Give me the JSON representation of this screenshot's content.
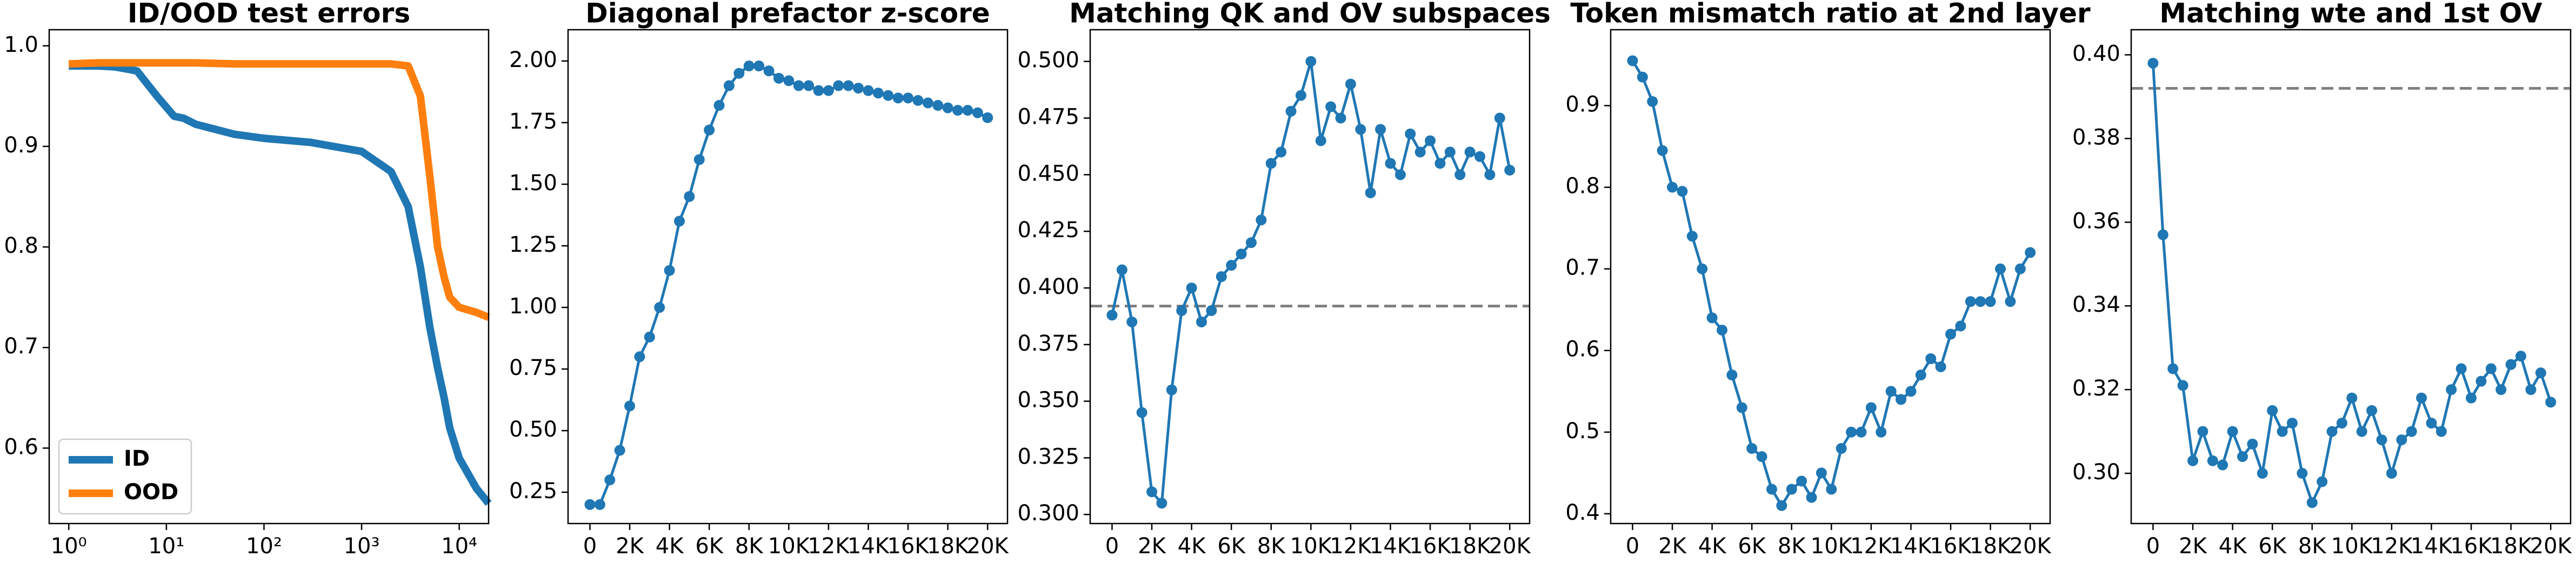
{
  "chart_data": [
    {
      "type": "line",
      "title": "ID/OOD test errors",
      "xscale": "log",
      "legend": "lower left",
      "x": [
        1,
        2,
        3,
        5,
        8,
        12,
        15,
        20,
        50,
        100,
        300,
        1000,
        2000,
        3000,
        4000,
        5000,
        6000,
        7000,
        8000,
        10000,
        15000,
        20000
      ],
      "series": [
        {
          "name": "ID",
          "color": "#1f77b4",
          "values": [
            0.98,
            0.98,
            0.979,
            0.975,
            0.95,
            0.93,
            0.928,
            0.922,
            0.912,
            0.908,
            0.904,
            0.895,
            0.875,
            0.84,
            0.78,
            0.72,
            0.68,
            0.65,
            0.62,
            0.59,
            0.56,
            0.545
          ]
        },
        {
          "name": "OOD",
          "color": "#ff7f0e",
          "values": [
            0.982,
            0.983,
            0.983,
            0.983,
            0.983,
            0.983,
            0.983,
            0.983,
            0.982,
            0.982,
            0.982,
            0.982,
            0.982,
            0.98,
            0.95,
            0.87,
            0.8,
            0.77,
            0.75,
            0.74,
            0.735,
            0.73
          ]
        }
      ],
      "xlim": [
        0.63,
        20000
      ],
      "ylim": [
        0.525,
        1.016
      ],
      "xticks": [
        {
          "value": 1,
          "label": "10⁰"
        },
        {
          "value": 10,
          "label": "10¹"
        },
        {
          "value": 100,
          "label": "10²"
        },
        {
          "value": 1000,
          "label": "10³"
        },
        {
          "value": 10000,
          "label": "10⁴"
        }
      ],
      "yticks": [
        0.6,
        0.7,
        0.8,
        0.9,
        {
          "value": 1,
          "label": "1.0"
        }
      ]
    },
    {
      "type": "line",
      "title": "Diagonal prefactor z-score",
      "markers": true,
      "x": [
        0,
        500,
        1000,
        1500,
        2000,
        2500,
        3000,
        3500,
        4000,
        4500,
        5000,
        5500,
        6000,
        6500,
        7000,
        7500,
        8000,
        8500,
        9000,
        9500,
        10000,
        10500,
        11000,
        11500,
        12000,
        12500,
        13000,
        13500,
        14000,
        14500,
        15000,
        15500,
        16000,
        16500,
        17000,
        17500,
        18000,
        18500,
        19000,
        19500,
        20000
      ],
      "series": [
        {
          "color": "#1f77b4",
          "values": [
            0.2,
            0.2,
            0.3,
            0.42,
            0.6,
            0.8,
            0.88,
            1.0,
            1.15,
            1.35,
            1.45,
            1.6,
            1.72,
            1.82,
            1.9,
            1.95,
            1.98,
            1.98,
            1.96,
            1.93,
            1.92,
            1.9,
            1.9,
            1.88,
            1.88,
            1.9,
            1.9,
            1.89,
            1.88,
            1.87,
            1.86,
            1.85,
            1.85,
            1.84,
            1.83,
            1.82,
            1.81,
            1.8,
            1.8,
            1.79,
            1.77
          ]
        }
      ],
      "xlim": [
        -1100,
        21000
      ],
      "ylim": [
        0.123,
        2.127
      ],
      "xticks": [
        0,
        {
          "value": 2000,
          "label": "2K"
        },
        {
          "value": 4000,
          "label": "4K"
        },
        {
          "value": 6000,
          "label": "6K"
        },
        {
          "value": 8000,
          "label": "8K"
        },
        {
          "value": 10000,
          "label": "10K"
        },
        {
          "value": 12000,
          "label": "12K"
        },
        {
          "value": 14000,
          "label": "14K"
        },
        {
          "value": 16000,
          "label": "16K"
        },
        {
          "value": 18000,
          "label": "18K"
        },
        {
          "value": 20000,
          "label": "20K"
        }
      ],
      "yticks": [
        0.25,
        {
          "value": 0.5,
          "label": "0.50"
        },
        0.75,
        {
          "value": 1,
          "label": "1.00"
        },
        1.25,
        {
          "value": 1.5,
          "label": "1.50"
        },
        1.75,
        {
          "value": 2,
          "label": "2.00"
        }
      ]
    },
    {
      "type": "line",
      "title": "Matching QK and OV subspaces",
      "markers": true,
      "hline": 0.392,
      "hline_color": "#808080",
      "x": [
        0,
        500,
        1000,
        1500,
        2000,
        2500,
        3000,
        3500,
        4000,
        4500,
        5000,
        5500,
        6000,
        6500,
        7000,
        7500,
        8000,
        8500,
        9000,
        9500,
        10000,
        10500,
        11000,
        11500,
        12000,
        12500,
        13000,
        13500,
        14000,
        14500,
        15000,
        15500,
        16000,
        16500,
        17000,
        17500,
        18000,
        18500,
        19000,
        19500,
        20000
      ],
      "series": [
        {
          "color": "#1f77b4",
          "values": [
            0.388,
            0.408,
            0.385,
            0.345,
            0.31,
            0.305,
            0.355,
            0.39,
            0.4,
            0.385,
            0.39,
            0.405,
            0.41,
            0.415,
            0.42,
            0.43,
            0.455,
            0.46,
            0.478,
            0.485,
            0.5,
            0.465,
            0.48,
            0.475,
            0.49,
            0.47,
            0.442,
            0.47,
            0.455,
            0.45,
            0.468,
            0.46,
            0.465,
            0.455,
            0.46,
            0.45,
            0.46,
            0.458,
            0.45,
            0.475,
            0.452
          ]
        }
      ],
      "xlim": [
        -1100,
        21000
      ],
      "ylim": [
        0.296,
        0.514
      ],
      "xticks": [
        0,
        {
          "value": 2000,
          "label": "2K"
        },
        {
          "value": 4000,
          "label": "4K"
        },
        {
          "value": 6000,
          "label": "6K"
        },
        {
          "value": 8000,
          "label": "8K"
        },
        {
          "value": 10000,
          "label": "10K"
        },
        {
          "value": 12000,
          "label": "12K"
        },
        {
          "value": 14000,
          "label": "14K"
        },
        {
          "value": 16000,
          "label": "16K"
        },
        {
          "value": 18000,
          "label": "18K"
        },
        {
          "value": 20000,
          "label": "20K"
        }
      ],
      "yticks": [
        {
          "value": 0.3,
          "label": "0.300"
        },
        0.325,
        {
          "value": 0.35,
          "label": "0.350"
        },
        0.375,
        {
          "value": 0.4,
          "label": "0.400"
        },
        0.425,
        {
          "value": 0.45,
          "label": "0.450"
        },
        0.475,
        {
          "value": 0.5,
          "label": "0.500"
        }
      ]
    },
    {
      "type": "line",
      "title": "Token mismatch ratio at 2nd layer",
      "markers": true,
      "x": [
        0,
        500,
        1000,
        1500,
        2000,
        2500,
        3000,
        3500,
        4000,
        4500,
        5000,
        5500,
        6000,
        6500,
        7000,
        7500,
        8000,
        8500,
        9000,
        9500,
        10000,
        10500,
        11000,
        11500,
        12000,
        12500,
        13000,
        13500,
        14000,
        14500,
        15000,
        15500,
        16000,
        16500,
        17000,
        17500,
        18000,
        18500,
        19000,
        19500,
        20000
      ],
      "series": [
        {
          "color": "#1f77b4",
          "values": [
            0.955,
            0.935,
            0.905,
            0.845,
            0.8,
            0.795,
            0.74,
            0.7,
            0.64,
            0.625,
            0.57,
            0.53,
            0.48,
            0.47,
            0.43,
            0.41,
            0.43,
            0.44,
            0.42,
            0.45,
            0.43,
            0.48,
            0.5,
            0.5,
            0.53,
            0.5,
            0.55,
            0.54,
            0.55,
            0.57,
            0.59,
            0.58,
            0.62,
            0.63,
            0.66,
            0.66,
            0.66,
            0.7,
            0.66,
            0.7,
            0.72
          ]
        }
      ],
      "xlim": [
        -1100,
        21000
      ],
      "ylim": [
        0.388,
        0.993
      ],
      "xticks": [
        0,
        {
          "value": 2000,
          "label": "2K"
        },
        {
          "value": 4000,
          "label": "4K"
        },
        {
          "value": 6000,
          "label": "6K"
        },
        {
          "value": 8000,
          "label": "8K"
        },
        {
          "value": 10000,
          "label": "10K"
        },
        {
          "value": 12000,
          "label": "12K"
        },
        {
          "value": 14000,
          "label": "14K"
        },
        {
          "value": 16000,
          "label": "16K"
        },
        {
          "value": 18000,
          "label": "18K"
        },
        {
          "value": 20000,
          "label": "20K"
        }
      ],
      "yticks": [
        0.4,
        0.5,
        0.6,
        0.7,
        0.8,
        0.9
      ]
    },
    {
      "type": "line",
      "title": "Matching wte and 1st OV",
      "markers": true,
      "hline": 0.392,
      "hline_color": "#808080",
      "x": [
        0,
        500,
        1000,
        1500,
        2000,
        2500,
        3000,
        3500,
        4000,
        4500,
        5000,
        5500,
        6000,
        6500,
        7000,
        7500,
        8000,
        8500,
        9000,
        9500,
        10000,
        10500,
        11000,
        11500,
        12000,
        12500,
        13000,
        13500,
        14000,
        14500,
        15000,
        15500,
        16000,
        16500,
        17000,
        17500,
        18000,
        18500,
        19000,
        19500,
        20000
      ],
      "series": [
        {
          "color": "#1f77b4",
          "values": [
            0.398,
            0.357,
            0.325,
            0.321,
            0.303,
            0.31,
            0.303,
            0.302,
            0.31,
            0.304,
            0.307,
            0.3,
            0.315,
            0.31,
            0.312,
            0.3,
            0.293,
            0.298,
            0.31,
            0.312,
            0.318,
            0.31,
            0.315,
            0.308,
            0.3,
            0.308,
            0.31,
            0.318,
            0.312,
            0.31,
            0.32,
            0.325,
            0.318,
            0.322,
            0.325,
            0.32,
            0.326,
            0.328,
            0.32,
            0.324,
            0.317
          ]
        }
      ],
      "xlim": [
        -1100,
        21000
      ],
      "ylim": [
        0.288,
        0.406
      ],
      "xticks": [
        0,
        {
          "value": 2000,
          "label": "2K"
        },
        {
          "value": 4000,
          "label": "4K"
        },
        {
          "value": 6000,
          "label": "6K"
        },
        {
          "value": 8000,
          "label": "8K"
        },
        {
          "value": 10000,
          "label": "10K"
        },
        {
          "value": 12000,
          "label": "12K"
        },
        {
          "value": 14000,
          "label": "14K"
        },
        {
          "value": 16000,
          "label": "16K"
        },
        {
          "value": 18000,
          "label": "18K"
        },
        {
          "value": 20000,
          "label": "20K"
        }
      ],
      "yticks": [
        {
          "value": 0.3,
          "label": "0.30"
        },
        0.32,
        0.34,
        0.36,
        0.38,
        {
          "value": 0.4,
          "label": "0.40"
        }
      ]
    }
  ]
}
